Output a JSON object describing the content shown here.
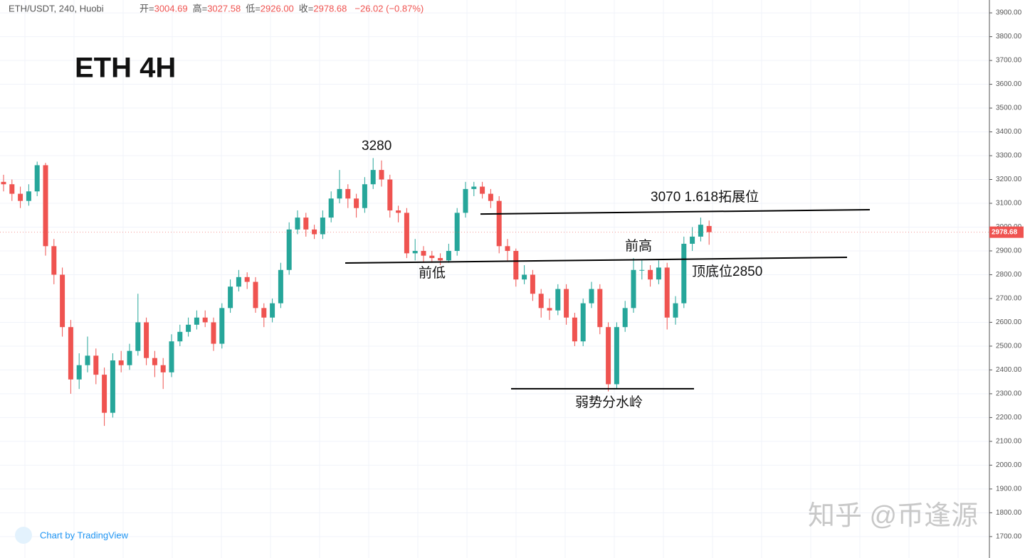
{
  "chart_data": {
    "type": "candlestick",
    "title": "ETH 4H",
    "header": {
      "symbol": "ETH/USDT, 240, Huobi",
      "fields": [
        {
          "label": "开=",
          "value": "3004.69"
        },
        {
          "label": "高=",
          "value": "3027.58"
        },
        {
          "label": "低=",
          "value": "2926.00"
        },
        {
          "label": "收=",
          "value": "2978.68"
        }
      ],
      "change": "−26.02 (−0.87%)"
    },
    "up_color": "#26a69a",
    "down_color": "#ef5350",
    "candles": [
      [
        3190,
        3220,
        3150,
        3180
      ],
      [
        3180,
        3200,
        3110,
        3140
      ],
      [
        3140,
        3170,
        3080,
        3110
      ],
      [
        3110,
        3180,
        3090,
        3150
      ],
      [
        3150,
        3275,
        3130,
        3260
      ],
      [
        3260,
        3270,
        2880,
        2920
      ],
      [
        2920,
        2950,
        2760,
        2800
      ],
      [
        2800,
        2830,
        2540,
        2580
      ],
      [
        2580,
        2610,
        2300,
        2360
      ],
      [
        2360,
        2470,
        2320,
        2420
      ],
      [
        2420,
        2540,
        2390,
        2460
      ],
      [
        2460,
        2490,
        2340,
        2380
      ],
      [
        2380,
        2410,
        2165,
        2220
      ],
      [
        2220,
        2470,
        2200,
        2440
      ],
      [
        2440,
        2480,
        2390,
        2420
      ],
      [
        2420,
        2510,
        2400,
        2480
      ],
      [
        2480,
        2720,
        2460,
        2600
      ],
      [
        2600,
        2620,
        2420,
        2450
      ],
      [
        2450,
        2480,
        2370,
        2420
      ],
      [
        2420,
        2450,
        2320,
        2390
      ],
      [
        2390,
        2550,
        2370,
        2520
      ],
      [
        2520,
        2590,
        2500,
        2560
      ],
      [
        2560,
        2620,
        2540,
        2590
      ],
      [
        2590,
        2650,
        2570,
        2620
      ],
      [
        2620,
        2650,
        2580,
        2600
      ],
      [
        2600,
        2620,
        2480,
        2510
      ],
      [
        2510,
        2680,
        2490,
        2660
      ],
      [
        2660,
        2780,
        2640,
        2750
      ],
      [
        2750,
        2820,
        2730,
        2790
      ],
      [
        2790,
        2810,
        2740,
        2770
      ],
      [
        2770,
        2790,
        2640,
        2660
      ],
      [
        2660,
        2680,
        2580,
        2620
      ],
      [
        2620,
        2700,
        2600,
        2680
      ],
      [
        2680,
        2850,
        2660,
        2820
      ],
      [
        2820,
        3020,
        2800,
        2990
      ],
      [
        2990,
        3070,
        2970,
        3040
      ],
      [
        3040,
        3060,
        2960,
        2990
      ],
      [
        2990,
        3010,
        2950,
        2970
      ],
      [
        2970,
        3070,
        2950,
        3040
      ],
      [
        3040,
        3150,
        3020,
        3120
      ],
      [
        3120,
        3240,
        3100,
        3160
      ],
      [
        3160,
        3180,
        3080,
        3120
      ],
      [
        3120,
        3140,
        3040,
        3080
      ],
      [
        3080,
        3210,
        3060,
        3180
      ],
      [
        3180,
        3290,
        3160,
        3240
      ],
      [
        3240,
        3280,
        3170,
        3200
      ],
      [
        3200,
        3220,
        3040,
        3070
      ],
      [
        3070,
        3090,
        3020,
        3060
      ],
      [
        3060,
        3080,
        2870,
        2890
      ],
      [
        2890,
        2950,
        2860,
        2900
      ],
      [
        2900,
        2920,
        2850,
        2880
      ],
      [
        2880,
        2900,
        2850,
        2870
      ],
      [
        2870,
        2890,
        2840,
        2860
      ],
      [
        2860,
        2930,
        2850,
        2900
      ],
      [
        2900,
        3080,
        2880,
        3060
      ],
      [
        3060,
        3190,
        3040,
        3160
      ],
      [
        3160,
        3190,
        3130,
        3170
      ],
      [
        3170,
        3190,
        3120,
        3140
      ],
      [
        3140,
        3160,
        3080,
        3110
      ],
      [
        3110,
        3130,
        2890,
        2920
      ],
      [
        2920,
        2950,
        2860,
        2900
      ],
      [
        2900,
        2910,
        2750,
        2780
      ],
      [
        2780,
        2840,
        2760,
        2800
      ],
      [
        2800,
        2820,
        2690,
        2720
      ],
      [
        2720,
        2740,
        2620,
        2660
      ],
      [
        2660,
        2700,
        2610,
        2650
      ],
      [
        2650,
        2760,
        2630,
        2740
      ],
      [
        2740,
        2760,
        2590,
        2620
      ],
      [
        2620,
        2640,
        2500,
        2520
      ],
      [
        2520,
        2700,
        2500,
        2680
      ],
      [
        2680,
        2770,
        2660,
        2740
      ],
      [
        2740,
        2760,
        2550,
        2580
      ],
      [
        2580,
        2600,
        2310,
        2340
      ],
      [
        2340,
        2600,
        2320,
        2580
      ],
      [
        2580,
        2690,
        2560,
        2660
      ],
      [
        2660,
        2870,
        2640,
        2820
      ],
      [
        2820,
        2860,
        2780,
        2820
      ],
      [
        2820,
        2840,
        2750,
        2780
      ],
      [
        2780,
        2860,
        2760,
        2830
      ],
      [
        2830,
        2850,
        2570,
        2620
      ],
      [
        2620,
        2710,
        2590,
        2680
      ],
      [
        2680,
        2960,
        2660,
        2930
      ],
      [
        2930,
        3000,
        2900,
        2960
      ],
      [
        2960,
        3040,
        2940,
        3010
      ],
      [
        3004.69,
        3027.58,
        2926,
        2978.68
      ]
    ],
    "ylim": [
      1610,
      3954
    ],
    "yticks": [
      {
        "value": 1700,
        "label": "1700.00"
      },
      {
        "value": 1800,
        "label": "1800.00"
      },
      {
        "value": 1900,
        "label": "1900.00"
      },
      {
        "value": 2000,
        "label": "2000.00"
      },
      {
        "value": 2100,
        "label": "2100.00"
      },
      {
        "value": 2200,
        "label": "2200.00"
      },
      {
        "value": 2300,
        "label": "2300.00"
      },
      {
        "value": 2400,
        "label": "2400.00"
      },
      {
        "value": 2500,
        "label": "2500.00"
      },
      {
        "value": 2600,
        "label": "2600.00"
      },
      {
        "value": 2700,
        "label": "2700.00"
      },
      {
        "value": 2800,
        "label": "2800.00"
      },
      {
        "value": 2900,
        "label": "2900.00"
      },
      {
        "value": 3000,
        "label": "3000.00"
      },
      {
        "value": 3100,
        "label": "3100.00"
      },
      {
        "value": 3200,
        "label": "3200.00"
      },
      {
        "value": 3300,
        "label": "3300.00"
      },
      {
        "value": 3400,
        "label": "3400.00"
      },
      {
        "value": 3500,
        "label": "3500.00"
      },
      {
        "value": 3600,
        "label": "3600.00"
      },
      {
        "value": 3700,
        "label": "3700.00"
      },
      {
        "value": 3800,
        "label": "3800.00"
      },
      {
        "value": 3900,
        "label": "3900.00"
      }
    ],
    "grid": true,
    "levels": [
      [
        3055,
        3073
      ],
      [
        2849,
        2873
      ],
      [
        2321,
        2321
      ]
    ],
    "annotations": [
      "3280",
      "3070  1.618拓展位",
      "前高",
      "前低",
      "顶底位2850",
      "弱势分水岭"
    ],
    "credit": "Chart by TradingView",
    "watermark": "知乎 @币逢源"
  }
}
